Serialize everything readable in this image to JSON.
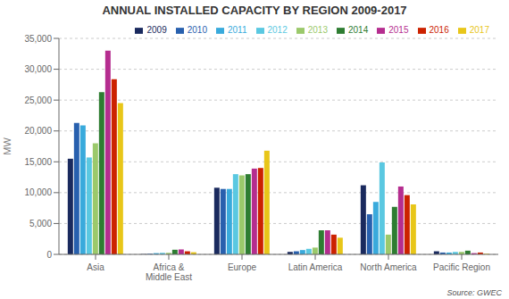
{
  "chart_data": {
    "type": "bar",
    "title": "ANNUAL INSTALLED CAPACITY BY REGION 2009-2017",
    "ylabel": "MW",
    "annotations": [
      "Source: GWEC"
    ],
    "categories": [
      "Asia",
      "Africa & Middle East",
      "Europe",
      "Latin America",
      "North America",
      "Pacific Region"
    ],
    "series": [
      {
        "name": "2009",
        "color": "#1a2a5e",
        "values": [
          15500,
          50,
          10800,
          400,
          11200,
          500
        ]
      },
      {
        "name": "2010",
        "color": "#2860ae",
        "values": [
          21300,
          100,
          10600,
          500,
          6500,
          300
        ]
      },
      {
        "name": "2011",
        "color": "#39aadc",
        "values": [
          20900,
          200,
          10600,
          700,
          8500,
          300
        ]
      },
      {
        "name": "2012",
        "color": "#5ac8e1",
        "values": [
          15700,
          250,
          13000,
          900,
          14900,
          400
        ]
      },
      {
        "name": "2013",
        "color": "#9bc96b",
        "values": [
          18000,
          250,
          12800,
          1100,
          3200,
          400
        ]
      },
      {
        "name": "2014",
        "color": "#2e7d32",
        "values": [
          26300,
          750,
          13000,
          3900,
          7700,
          600
        ]
      },
      {
        "name": "2015",
        "color": "#b52d8f",
        "values": [
          33000,
          800,
          13900,
          3900,
          11000,
          200
        ]
      },
      {
        "name": "2016",
        "color": "#cc2200",
        "values": [
          28400,
          500,
          14000,
          3200,
          9600,
          300
        ]
      },
      {
        "name": "2017",
        "color": "#e8c619",
        "values": [
          24500,
          350,
          16800,
          2700,
          8100,
          100
        ]
      }
    ],
    "ylim": [
      0,
      35000
    ],
    "yticks": [
      0,
      {
        "value": 5000,
        "label": "5,000"
      },
      {
        "value": 10000,
        "label": "10,000"
      },
      {
        "value": 15000,
        "label": "15,000"
      },
      {
        "value": 20000,
        "label": "20,000"
      },
      {
        "value": 25000,
        "label": "25,000"
      },
      {
        "value": 30000,
        "label": "30,000"
      },
      {
        "value": 35000,
        "label": "35,000"
      }
    ],
    "grid": true,
    "legend": "upper right"
  }
}
